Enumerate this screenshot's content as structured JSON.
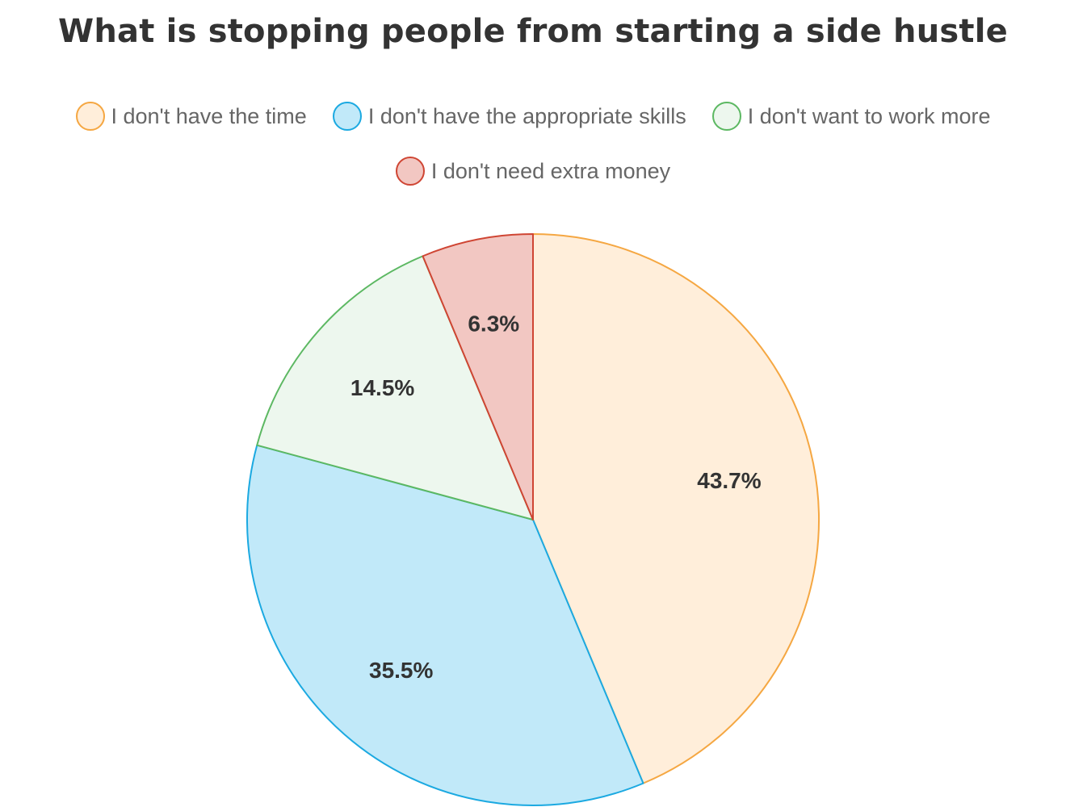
{
  "chart_data": {
    "type": "pie",
    "title": "What is stopping people from starting a side hustle",
    "legend_position": "top",
    "slices": [
      {
        "label": "I don't have the time",
        "value": 43.7,
        "display": "43.7%",
        "fill": "#FFEEDA",
        "stroke": "#F5A742"
      },
      {
        "label": "I don't have the appropriate skills",
        "value": 35.5,
        "display": "35.5%",
        "fill": "#C1E9F9",
        "stroke": "#1BA9E1"
      },
      {
        "label": "I don't want to work more",
        "value": 14.5,
        "display": "14.5%",
        "fill": "#EDF7EE",
        "stroke": "#5CB862"
      },
      {
        "label": "I don't need extra money",
        "value": 6.3,
        "display": "6.3%",
        "fill": "#F2C7C2",
        "stroke": "#CF4533"
      }
    ]
  }
}
